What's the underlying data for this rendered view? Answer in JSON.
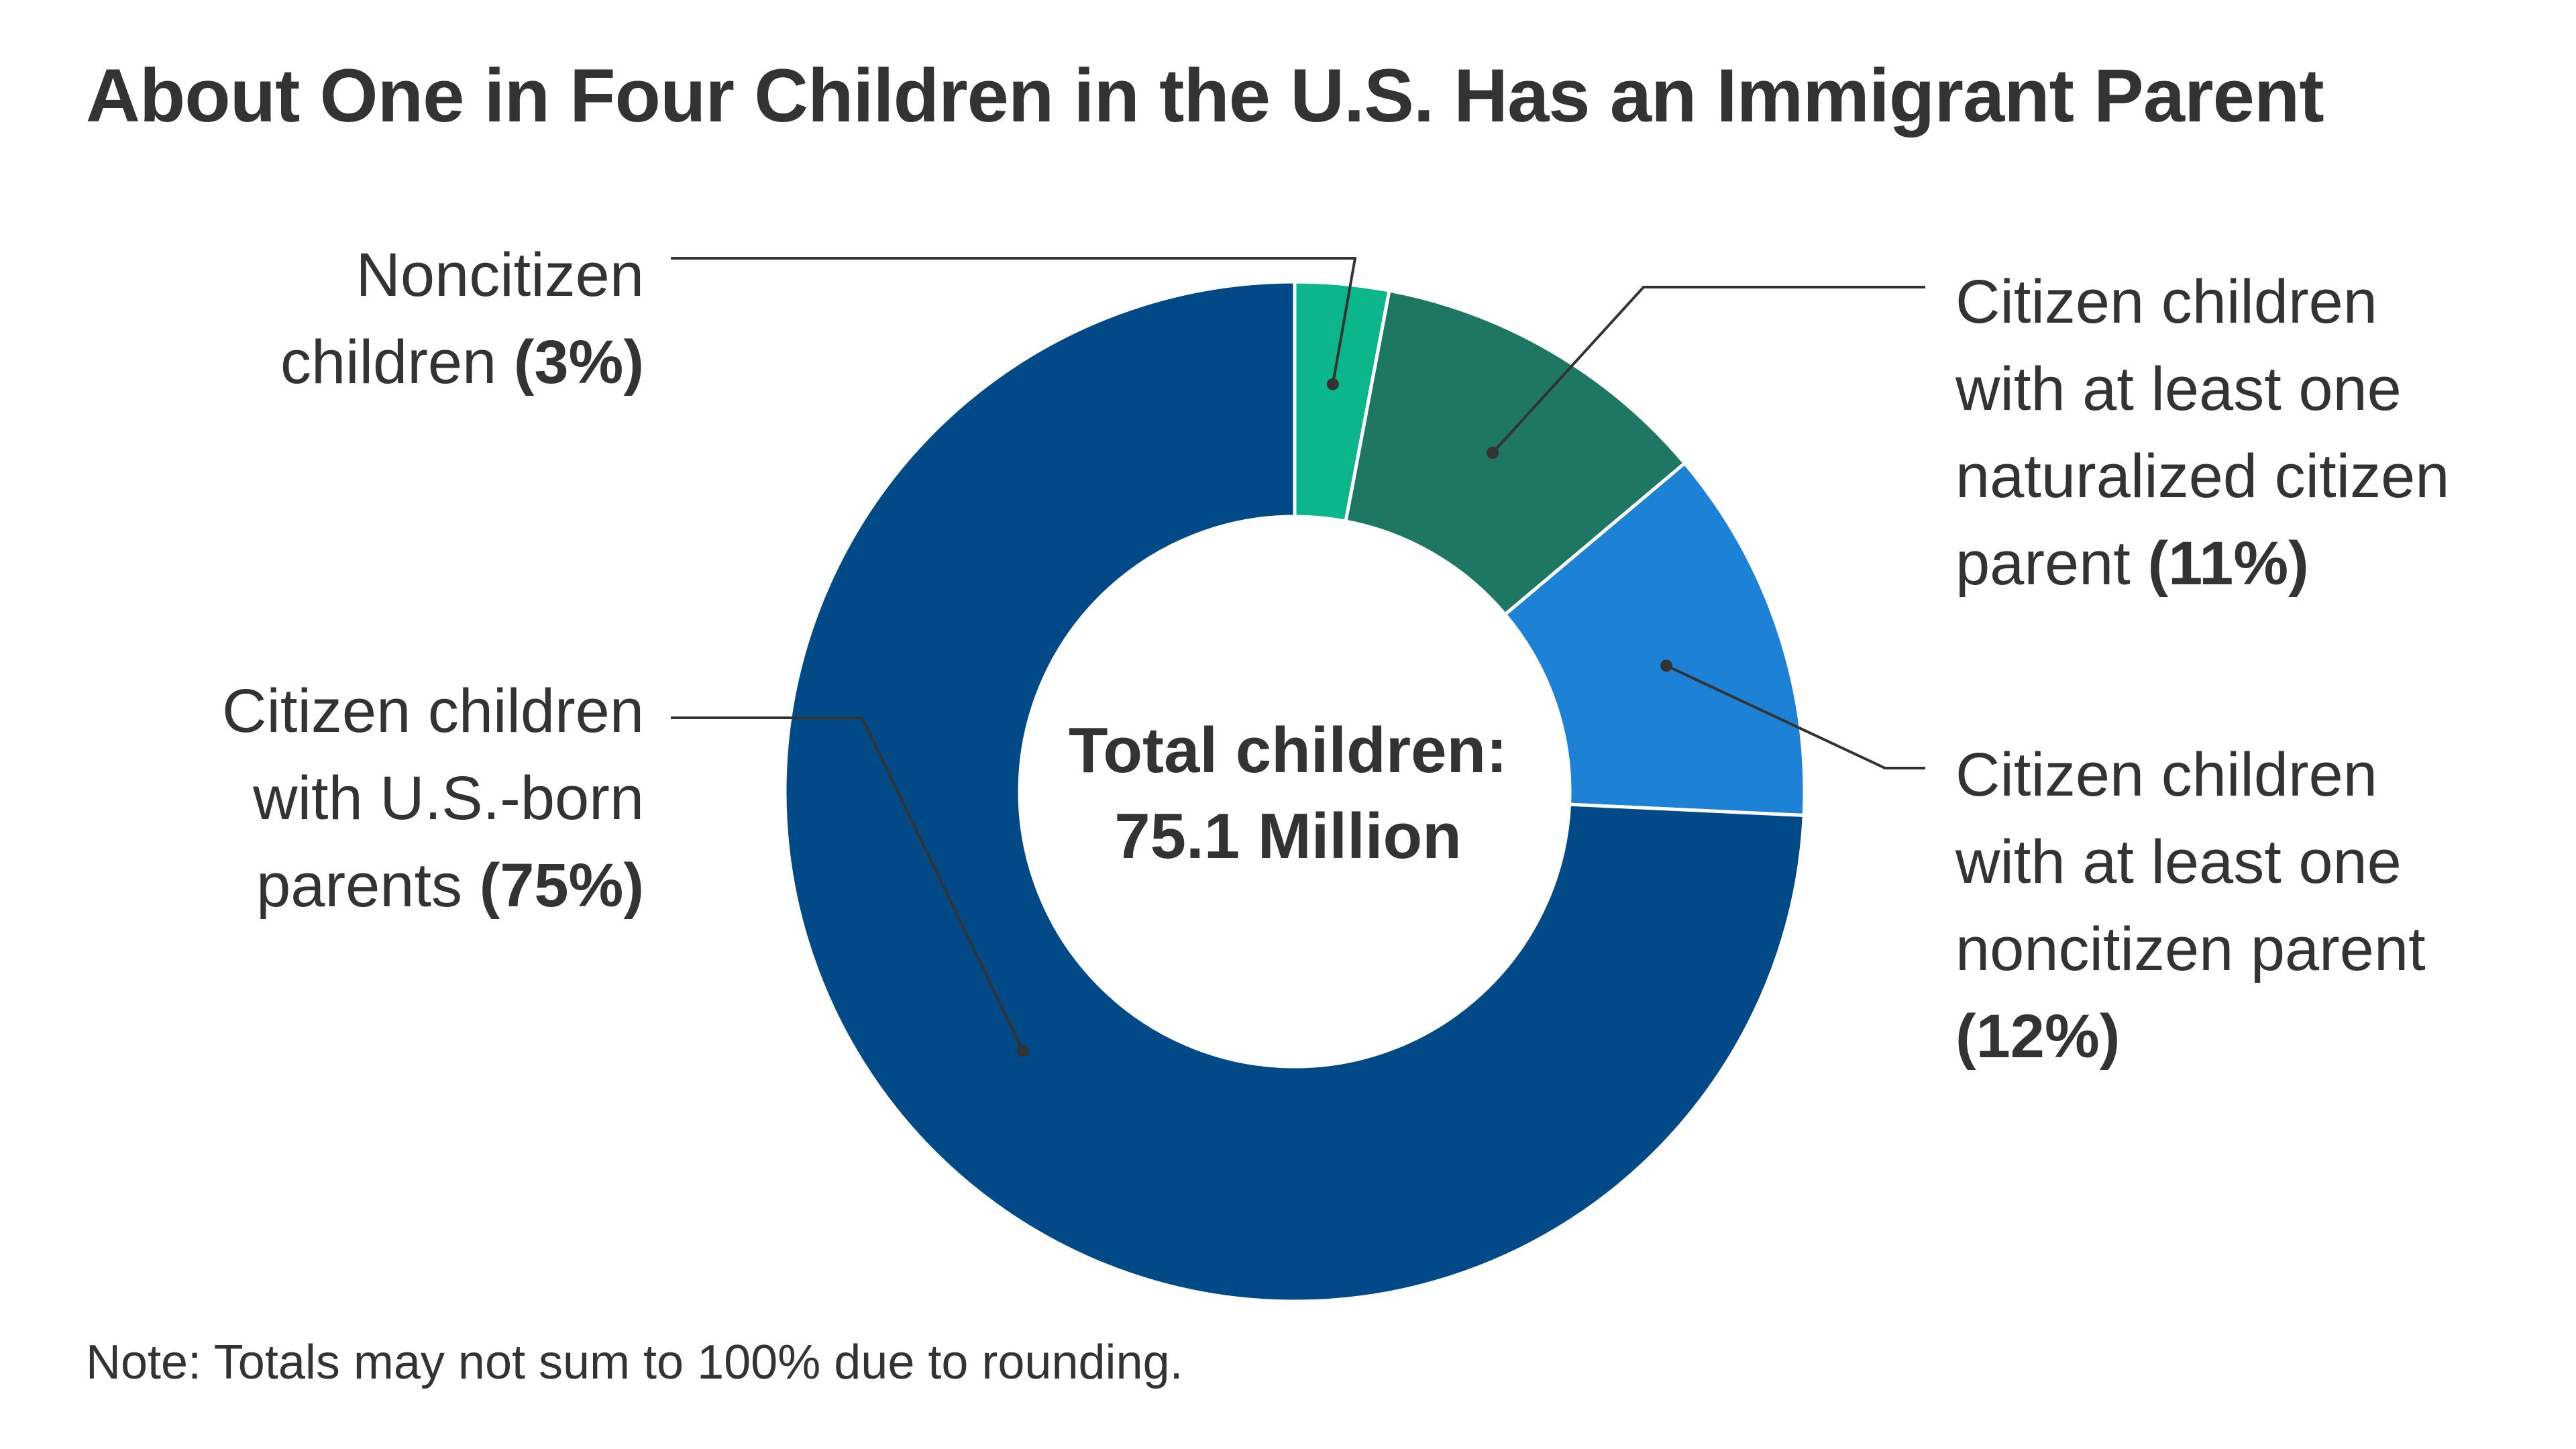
{
  "chart_data": {
    "type": "pie",
    "title": "About One in Four Children in the U.S. Has an Immigrant Parent",
    "center_label": {
      "line1": "Total children:",
      "line2": "75.1 Million"
    },
    "slices": [
      {
        "id": "noncitizen-children",
        "label_lines": [
          "Noncitizen",
          "children"
        ],
        "pct_text": "(3%)",
        "value": 3,
        "color": "#0bb68a"
      },
      {
        "id": "naturalized-parent",
        "label_lines": [
          "Citizen children",
          "with at least one",
          "naturalized citizen",
          "parent"
        ],
        "pct_text": "(11%)",
        "value": 11,
        "color": "#1e7762"
      },
      {
        "id": "noncitizen-parent",
        "label_lines": [
          "Citizen children",
          "with at least one",
          "noncitizen parent"
        ],
        "pct_text": "(12%)",
        "value": 12,
        "color": "#1d82d6"
      },
      {
        "id": "us-born-parents",
        "label_lines": [
          "Citizen children",
          "with U.S.-born",
          "parents"
        ],
        "pct_text": "(75%)",
        "value": 75,
        "color": "#014a87"
      }
    ],
    "note": "Note: Totals may not sum to 100% due to rounding."
  }
}
